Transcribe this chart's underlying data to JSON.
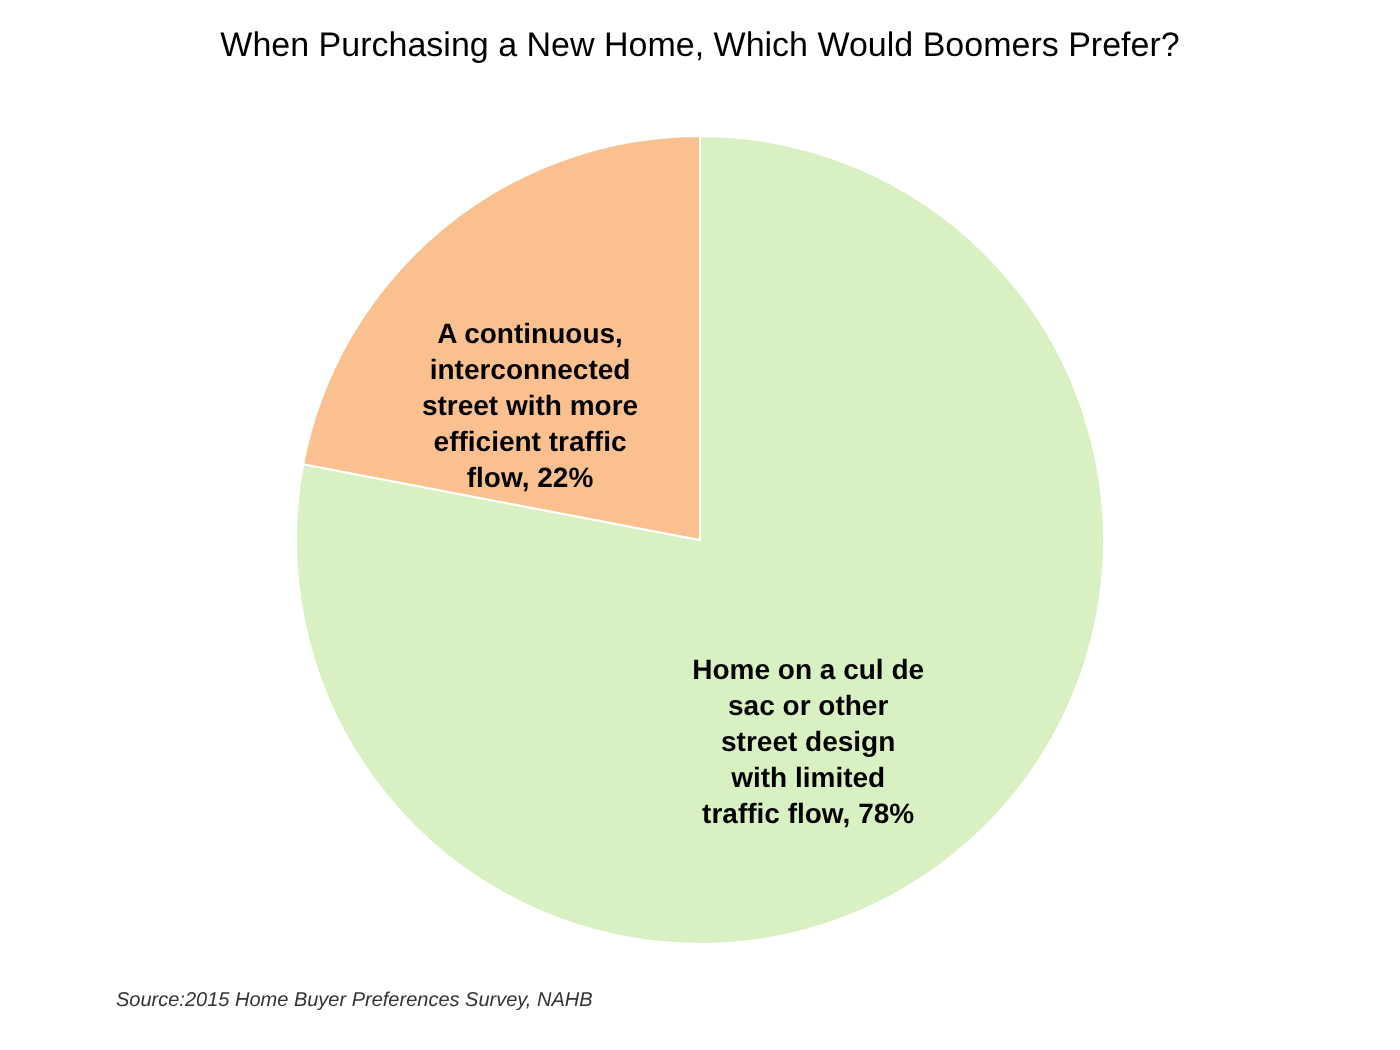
{
  "chart_data": {
    "type": "pie",
    "title": "When Purchasing a New Home, Which Would Boomers Prefer?",
    "categories": [
      "Home on a cul de sac or other street design with limited traffic flow",
      "A continuous, interconnected street with more efficient traffic flow"
    ],
    "values": [
      78,
      22
    ],
    "value_labels": [
      "78%",
      "22%"
    ],
    "colors": [
      "#d8f0c2",
      "#fac08f"
    ],
    "annotations": [
      "Source:2015 Home Buyer Preferences Survey, NAHB"
    ]
  }
}
